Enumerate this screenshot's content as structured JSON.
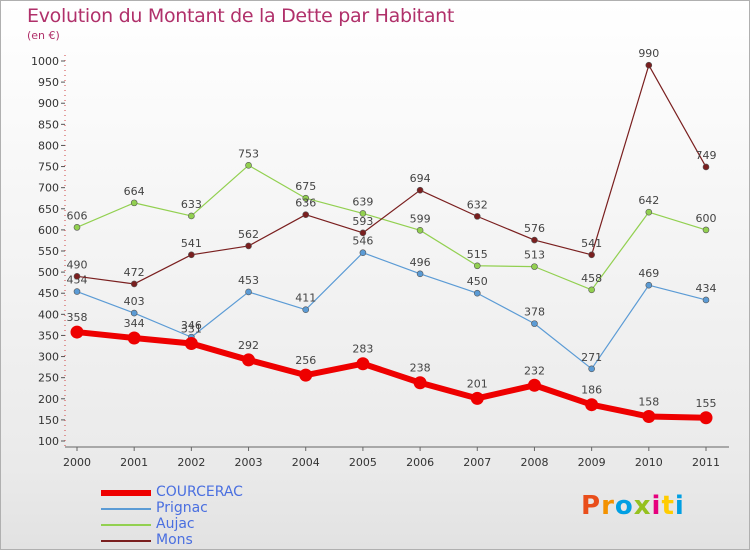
{
  "title": "Evolution du Montant de la Dette par Habitant",
  "subtitle": "(en €)",
  "brand": {
    "text": "Proxiti",
    "colors": [
      "#e94e1b",
      "#f39200",
      "#009fe3",
      "#95c11f",
      "#e6007e",
      "#ffcc00",
      "#009fe3"
    ]
  },
  "chart_data": {
    "type": "line",
    "title": "Evolution du Montant de la Dette par Habitant",
    "subtitle": "(en €)",
    "x": [
      "2000",
      "2001",
      "2002",
      "2003",
      "2004",
      "2005",
      "2006",
      "2007",
      "2008",
      "2009",
      "2010",
      "2011"
    ],
    "ylim": [
      100,
      1000
    ],
    "yticks": [
      100,
      150,
      200,
      250,
      300,
      350,
      400,
      450,
      500,
      550,
      600,
      650,
      700,
      750,
      800,
      850,
      900,
      950,
      1000
    ],
    "grid": false,
    "legend_position": "bottom-left",
    "series": [
      {
        "name": "COURCERAC",
        "color": "#ee0000",
        "values": [
          358,
          344,
          331,
          292,
          256,
          283,
          238,
          201,
          232,
          186,
          158,
          155
        ]
      },
      {
        "name": "Prignac",
        "color": "#5b9bd5",
        "values": [
          454,
          403,
          346,
          453,
          411,
          546,
          496,
          450,
          378,
          271,
          469,
          434
        ]
      },
      {
        "name": "Aujac",
        "color": "#92d050",
        "values": [
          606,
          664,
          633,
          753,
          675,
          639,
          599,
          515,
          513,
          458,
          642,
          600
        ]
      },
      {
        "name": "Mons",
        "color": "#7a1f1f",
        "values": [
          490,
          472,
          541,
          562,
          636,
          593,
          694,
          632,
          576,
          541,
          990,
          749
        ]
      }
    ]
  }
}
